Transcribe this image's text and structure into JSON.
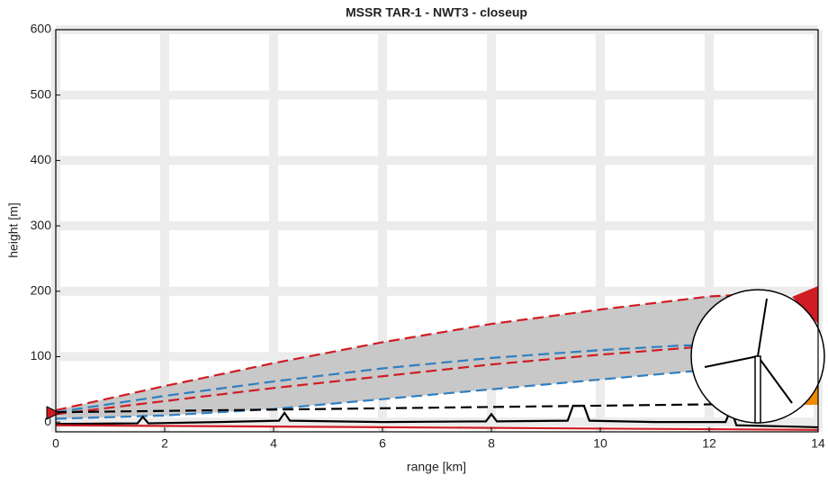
{
  "chart_data": {
    "type": "line",
    "title": "MSSR TAR-1 - NWT3 - closeup",
    "x_label": "range [km]",
    "y_label": "height [m]",
    "xlim": [
      0,
      14
    ],
    "xticks": [
      0,
      2,
      4,
      6,
      8,
      10,
      12,
      14
    ],
    "ylim": [
      -15,
      600
    ],
    "yticks": [
      0,
      100,
      200,
      300,
      400,
      500,
      600
    ],
    "grid": true,
    "area_color": "#c8c8c8",
    "series": [
      {
        "color": "#d01c24",
        "dash": true,
        "x": [
          0,
          2,
          4,
          6,
          8,
          10,
          12,
          12.7
        ],
        "values": [
          18,
          55,
          90,
          122,
          150,
          172,
          192,
          195
        ]
      },
      {
        "color": "#d01c24",
        "dash": true,
        "x": [
          0,
          2,
          4,
          6,
          8,
          10,
          12,
          12.5
        ],
        "values": [
          12,
          32,
          52,
          70,
          88,
          103,
          116,
          120
        ]
      },
      {
        "color": "#2f7fc1",
        "dash": true,
        "x": [
          0,
          2,
          4,
          6,
          8,
          10,
          11.5,
          12.3
        ],
        "values": [
          15,
          40,
          62,
          82,
          98,
          110,
          117,
          118
        ]
      },
      {
        "color": "#2f7fc1",
        "dash": true,
        "x": [
          0,
          2,
          4,
          6,
          8,
          10,
          12
        ],
        "values": [
          5,
          10,
          20,
          35,
          50,
          65,
          80
        ]
      },
      {
        "color": "#000000",
        "dash": true,
        "x": [
          0,
          13
        ],
        "values": [
          15,
          28
        ]
      },
      {
        "color": "#000000",
        "dash": false,
        "x": [
          0,
          1.5,
          1.6,
          1.7,
          3,
          4.1,
          4.2,
          4.3,
          6,
          7.9,
          8.0,
          8.1,
          9.4,
          9.5,
          9.7,
          9.8,
          11,
          12.3,
          12.4,
          12.5,
          14
        ],
        "values": [
          -3,
          -2,
          8,
          -2,
          0,
          2,
          14,
          2,
          0,
          1,
          12,
          1,
          2,
          25,
          25,
          2,
          0,
          0,
          20,
          -5,
          -8
        ]
      },
      {
        "color": "#d01c24",
        "dash": false,
        "x": [
          0,
          14
        ],
        "values": [
          -5,
          -12
        ]
      }
    ]
  }
}
